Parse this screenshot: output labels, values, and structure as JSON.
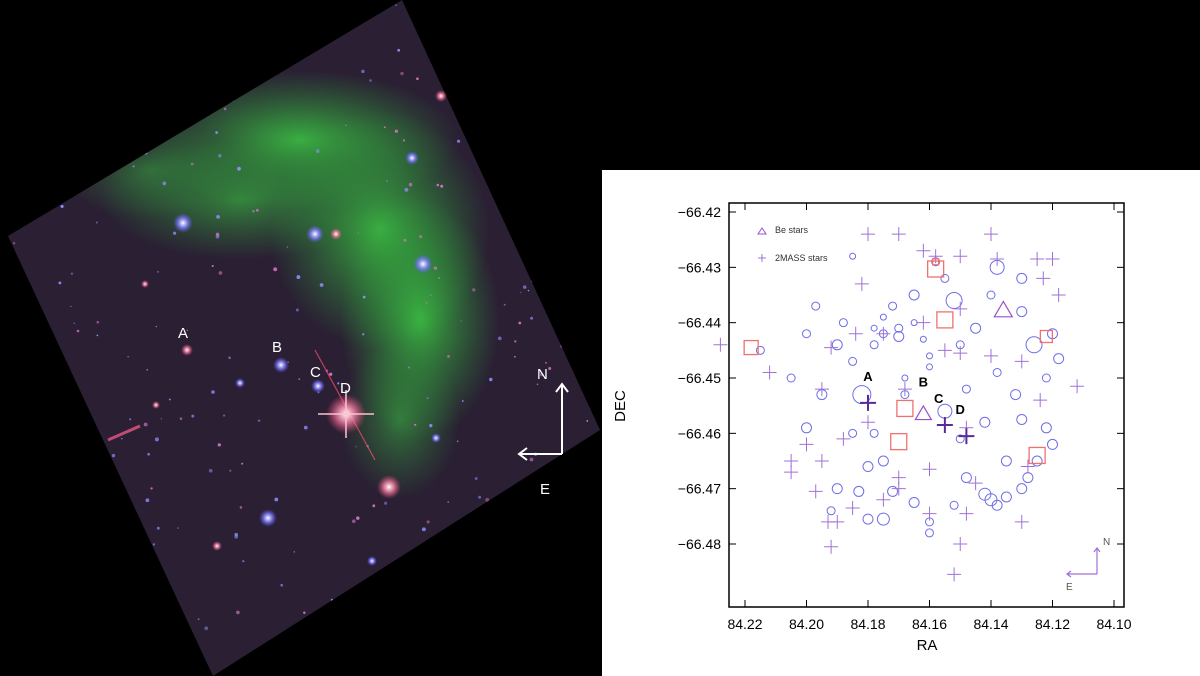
{
  "image": {
    "labels": [
      "A",
      "B",
      "C",
      "D"
    ],
    "compass": {
      "north": "N",
      "east": "E"
    },
    "colors": {
      "nebula": "#2fa83a",
      "field": "#2a1f33",
      "star_red": "#e23a6a",
      "star_blue": "#6f6cff"
    }
  },
  "chart_data": {
    "type": "scatter",
    "title": "",
    "xlabel": "RA",
    "ylabel": "DEC",
    "xlim": [
      84.1,
      84.23
    ],
    "ylim": [
      -66.49,
      -66.42
    ],
    "x_reversed": true,
    "xticks": [
      "84.22",
      "84.20",
      "84.18",
      "84.16",
      "84.14",
      "84.12",
      "84.10"
    ],
    "xtick_values": [
      84.22,
      84.2,
      84.18,
      84.16,
      84.14,
      84.12,
      84.1
    ],
    "yticks": [
      "−66.42",
      "−66.43",
      "−66.44",
      "−66.45",
      "−66.46",
      "−66.47",
      "−66.48"
    ],
    "ytick_values": [
      -66.42,
      -66.43,
      -66.44,
      -66.45,
      -66.46,
      -66.47,
      -66.48
    ],
    "legend": {
      "placement": "top-left",
      "entries": [
        "Be stars",
        "2MASS stars"
      ]
    },
    "colors": {
      "circles": "#6e6ee6",
      "plus": "#a070d8",
      "squares": "#f07070",
      "triangles": "#9a50c8",
      "bold_plus": "#5a2a9a"
    },
    "annotations": [
      {
        "text": "A",
        "x": 84.18,
        "y": -66.4505
      },
      {
        "text": "B",
        "x": 84.162,
        "y": -66.4515
      },
      {
        "text": "C",
        "x": 84.157,
        "y": -66.4545
      },
      {
        "text": "D",
        "x": 84.15,
        "y": -66.4565
      }
    ],
    "compass": {
      "north": "N",
      "east": "E"
    },
    "series": [
      {
        "marker": "circle",
        "points": [
          [
            84.215,
            -66.445,
            4
          ],
          [
            84.2,
            -66.442,
            4
          ],
          [
            84.19,
            -66.444,
            5
          ],
          [
            84.185,
            -66.447,
            4
          ],
          [
            84.205,
            -66.45,
            4
          ],
          [
            84.195,
            -66.453,
            5
          ],
          [
            84.182,
            -66.453,
            9
          ],
          [
            84.178,
            -66.444,
            4
          ],
          [
            84.175,
            -66.442,
            4
          ],
          [
            84.17,
            -66.441,
            4
          ],
          [
            84.165,
            -66.44,
            3
          ],
          [
            84.172,
            -66.437,
            4
          ],
          [
            84.165,
            -66.435,
            5
          ],
          [
            84.175,
            -66.439,
            3
          ],
          [
            84.178,
            -66.441,
            3
          ],
          [
            84.17,
            -66.4425,
            5
          ],
          [
            84.162,
            -66.443,
            3
          ],
          [
            84.16,
            -66.446,
            3
          ],
          [
            84.15,
            -66.444,
            4
          ],
          [
            84.145,
            -66.441,
            5
          ],
          [
            84.152,
            -66.436,
            8
          ],
          [
            84.138,
            -66.43,
            7
          ],
          [
            84.13,
            -66.432,
            5
          ],
          [
            84.14,
            -66.435,
            4
          ],
          [
            84.13,
            -66.438,
            5
          ],
          [
            84.126,
            -66.444,
            8
          ],
          [
            84.12,
            -66.442,
            5
          ],
          [
            84.118,
            -66.4465,
            5
          ],
          [
            84.122,
            -66.45,
            4
          ],
          [
            84.132,
            -66.453,
            5
          ],
          [
            84.13,
            -66.4575,
            5
          ],
          [
            84.122,
            -66.459,
            5
          ],
          [
            84.12,
            -66.462,
            5
          ],
          [
            84.125,
            -66.465,
            5
          ],
          [
            84.128,
            -66.468,
            5
          ],
          [
            84.13,
            -66.47,
            5
          ],
          [
            84.135,
            -66.4715,
            5
          ],
          [
            84.14,
            -66.472,
            6
          ],
          [
            84.142,
            -66.471,
            6
          ],
          [
            84.138,
            -66.473,
            5
          ],
          [
            84.148,
            -66.468,
            5
          ],
          [
            84.152,
            -66.473,
            4
          ],
          [
            84.16,
            -66.476,
            4
          ],
          [
            84.16,
            -66.478,
            4
          ],
          [
            84.165,
            -66.4725,
            5
          ],
          [
            84.172,
            -66.4705,
            5
          ],
          [
            84.175,
            -66.4755,
            6
          ],
          [
            84.18,
            -66.4755,
            5
          ],
          [
            84.183,
            -66.4705,
            5
          ],
          [
            84.18,
            -66.466,
            5
          ],
          [
            84.19,
            -66.47,
            5
          ],
          [
            84.192,
            -66.474,
            4
          ],
          [
            84.175,
            -66.465,
            5
          ],
          [
            84.178,
            -66.46,
            4
          ],
          [
            84.168,
            -66.453,
            4
          ],
          [
            84.16,
            -66.448,
            3
          ],
          [
            84.168,
            -66.45,
            3
          ],
          [
            84.155,
            -66.456,
            7
          ],
          [
            84.142,
            -66.458,
            5
          ],
          [
            84.2,
            -66.459,
            5
          ],
          [
            84.185,
            -66.46,
            4
          ],
          [
            84.15,
            -66.461,
            4
          ],
          [
            84.135,
            -66.465,
            5
          ],
          [
            84.148,
            -66.452,
            4
          ],
          [
            84.138,
            -66.449,
            4
          ],
          [
            84.185,
            -66.428,
            3
          ],
          [
            84.197,
            -66.437,
            4
          ],
          [
            84.188,
            -66.44,
            4
          ],
          [
            84.155,
            -66.432,
            4
          ],
          [
            84.158,
            -66.429,
            4
          ]
        ]
      },
      {
        "marker": "plus",
        "points": [
          [
            84.228,
            -66.444,
            7
          ],
          [
            84.212,
            -66.449,
            7
          ],
          [
            84.205,
            -66.465,
            7
          ],
          [
            84.205,
            -66.467,
            7
          ],
          [
            84.197,
            -66.4705,
            7
          ],
          [
            84.193,
            -66.476,
            7
          ],
          [
            84.192,
            -66.4805,
            7
          ],
          [
            84.195,
            -66.465,
            7
          ],
          [
            84.182,
            -66.433,
            7
          ],
          [
            84.18,
            -66.424,
            7
          ],
          [
            84.17,
            -66.424,
            7
          ],
          [
            84.162,
            -66.427,
            7
          ],
          [
            84.15,
            -66.428,
            7
          ],
          [
            84.14,
            -66.424,
            7
          ],
          [
            84.138,
            -66.4285,
            7
          ],
          [
            84.125,
            -66.4285,
            7
          ],
          [
            84.12,
            -66.4285,
            7
          ],
          [
            84.123,
            -66.432,
            7
          ],
          [
            84.118,
            -66.435,
            7
          ],
          [
            84.112,
            -66.4515,
            7
          ],
          [
            84.124,
            -66.454,
            7
          ],
          [
            84.13,
            -66.447,
            7
          ],
          [
            84.128,
            -66.466,
            7
          ],
          [
            84.13,
            -66.476,
            7
          ],
          [
            84.145,
            -66.469,
            7
          ],
          [
            84.148,
            -66.4745,
            7
          ],
          [
            84.15,
            -66.48,
            7
          ],
          [
            84.152,
            -66.4855,
            7
          ],
          [
            84.16,
            -66.4665,
            7
          ],
          [
            84.17,
            -66.468,
            7
          ],
          [
            84.175,
            -66.472,
            7
          ],
          [
            84.185,
            -66.4735,
            7
          ],
          [
            84.19,
            -66.476,
            7
          ],
          [
            84.2,
            -66.462,
            7
          ],
          [
            84.192,
            -66.4445,
            7
          ],
          [
            84.184,
            -66.442,
            7
          ],
          [
            84.175,
            -66.442,
            7
          ],
          [
            84.162,
            -66.44,
            7
          ],
          [
            84.155,
            -66.445,
            7
          ],
          [
            84.15,
            -66.4455,
            7
          ],
          [
            84.15,
            -66.4375,
            7
          ],
          [
            84.188,
            -66.461,
            7
          ],
          [
            84.18,
            -66.458,
            7
          ],
          [
            84.168,
            -66.452,
            7
          ],
          [
            84.148,
            -66.459,
            7
          ],
          [
            84.17,
            -66.47,
            7
          ],
          [
            84.16,
            -66.4745,
            7
          ],
          [
            84.158,
            -66.428,
            7
          ],
          [
            84.195,
            -66.452,
            7
          ],
          [
            84.14,
            -66.446,
            7
          ]
        ]
      },
      {
        "marker": "bold-plus",
        "points": [
          [
            84.18,
            -66.4545,
            8
          ],
          [
            84.155,
            -66.4585,
            8
          ],
          [
            84.148,
            -66.4605,
            8
          ]
        ]
      },
      {
        "marker": "square",
        "points": [
          [
            84.218,
            -66.4445,
            7
          ],
          [
            84.158,
            -66.4303,
            8
          ],
          [
            84.155,
            -66.4395,
            8
          ],
          [
            84.122,
            -66.4425,
            6
          ],
          [
            84.168,
            -66.4555,
            8
          ],
          [
            84.17,
            -66.4615,
            8
          ],
          [
            84.125,
            -66.464,
            8
          ],
          [
            84.158,
            -66.429,
            3
          ]
        ]
      },
      {
        "marker": "triangle",
        "points": [
          [
            84.136,
            -66.4378,
            9
          ],
          [
            84.162,
            -66.4565,
            8
          ]
        ]
      }
    ]
  }
}
